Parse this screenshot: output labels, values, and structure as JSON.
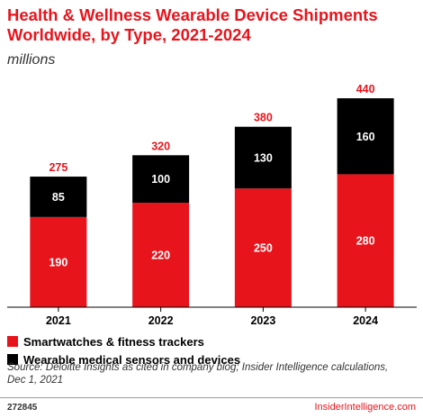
{
  "colors": {
    "accent": "#e8141c",
    "series_1": "#e8141c",
    "series_2": "#000000"
  },
  "footer": {
    "id": "272845",
    "brand": "InsiderIntelligence.com"
  },
  "chart_data": {
    "type": "bar",
    "stacked": true,
    "title": "Health & Wellness Wearable Device Shipments Worldwide, by Type, 2021-2024",
    "subtitle": "millions",
    "categories": [
      "2021",
      "2022",
      "2023",
      "2024"
    ],
    "series": [
      {
        "name": "Smartwatches & fitness trackers",
        "color": "#e8141c",
        "values": [
          190,
          220,
          250,
          280
        ]
      },
      {
        "name": "Wearable medical sensors and devices",
        "color": "#000000",
        "values": [
          85,
          100,
          130,
          160
        ]
      }
    ],
    "totals": [
      275,
      320,
      380,
      440
    ],
    "ylim": [
      0,
      480
    ],
    "legend_position": "bottom-left",
    "grid": false,
    "source": "Source: Deloitte Insights as cited in company blog; Insider Intelligence calculations, Dec 1, 2021"
  }
}
